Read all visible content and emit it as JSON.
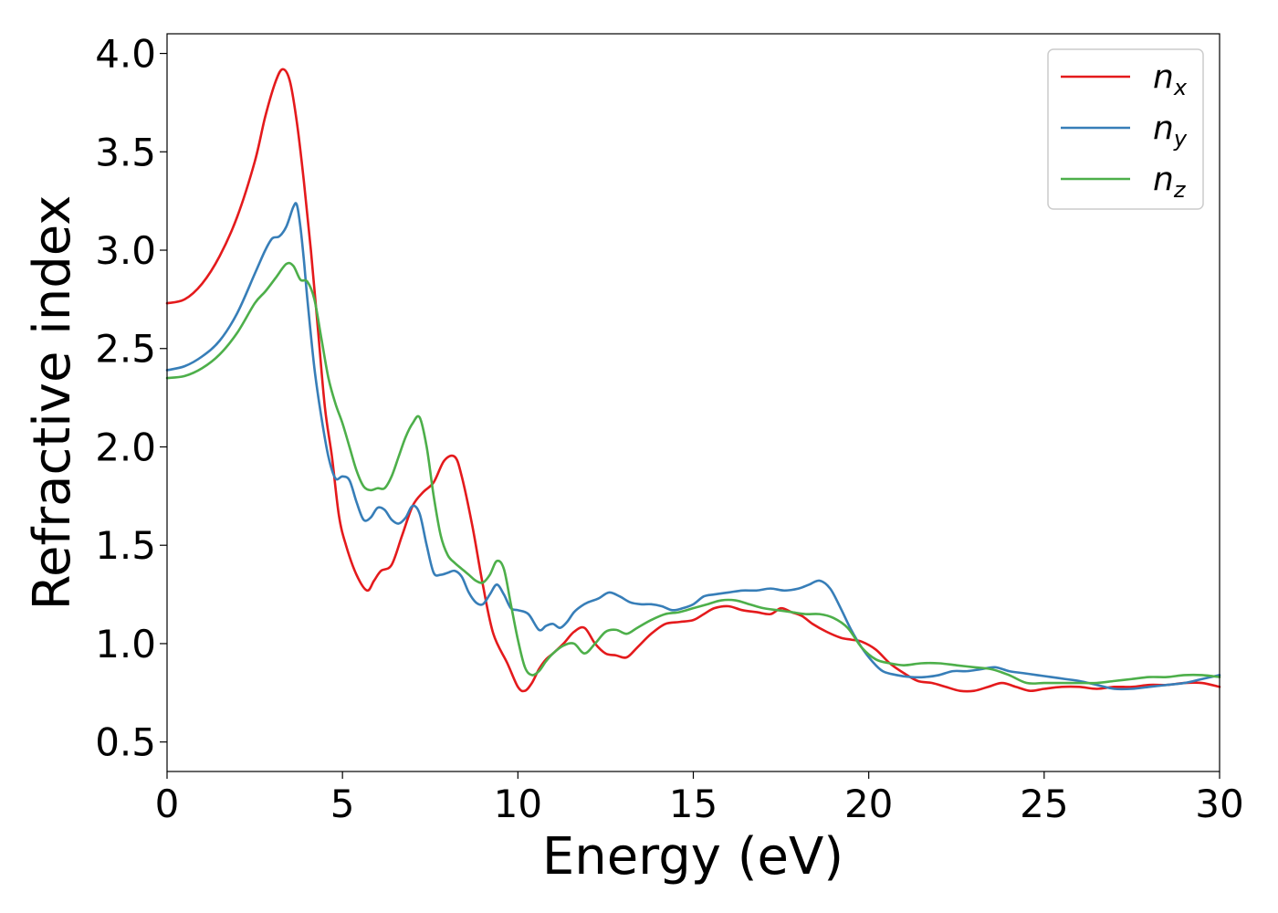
{
  "chart_data": {
    "type": "line",
    "title": "",
    "xlabel": "Energy (eV)",
    "ylabel": "Refractive index",
    "xlim": [
      0,
      30
    ],
    "ylim": [
      0.35,
      4.1
    ],
    "xticks": [
      "0",
      "5",
      "10",
      "15",
      "20",
      "25",
      "30"
    ],
    "yticks": [
      "0.5",
      "1.0",
      "1.5",
      "2.0",
      "2.5",
      "3.0",
      "3.5",
      "4.0"
    ],
    "grid": false,
    "legend_position": "top-right",
    "series": [
      {
        "name": "n",
        "subscript": "x",
        "color": "#e41a1c",
        "x": [
          0,
          0.5,
          1,
          1.5,
          2,
          2.5,
          2.8,
          3.1,
          3.3,
          3.5,
          3.7,
          3.9,
          4.1,
          4.3,
          4.5,
          4.7,
          4.9,
          5.1,
          5.4,
          5.7,
          5.9,
          6.1,
          6.4,
          6.7,
          7.0,
          7.3,
          7.6,
          7.9,
          8.2,
          8.4,
          8.7,
          9.0,
          9.3,
          9.7,
          10.0,
          10.2,
          10.4,
          10.6,
          10.8,
          11.0,
          11.3,
          11.6,
          11.9,
          12.2,
          12.5,
          12.8,
          13.1,
          13.4,
          13.8,
          14.2,
          14.6,
          15.0,
          15.3,
          15.6,
          16.0,
          16.4,
          16.8,
          17.2,
          17.5,
          17.8,
          18.1,
          18.4,
          18.8,
          19.2,
          19.5,
          19.8,
          20.2,
          20.6,
          21.0,
          21.4,
          21.8,
          22.2,
          22.6,
          23.0,
          23.4,
          23.8,
          24.2,
          24.6,
          25.0,
          25.5,
          26.0,
          26.5,
          27.0,
          27.5,
          28.0,
          28.5,
          29.0,
          29.5,
          30.0
        ],
        "y": [
          2.73,
          2.75,
          2.83,
          2.97,
          3.17,
          3.45,
          3.68,
          3.86,
          3.92,
          3.86,
          3.65,
          3.35,
          3.0,
          2.6,
          2.2,
          1.95,
          1.65,
          1.5,
          1.35,
          1.27,
          1.32,
          1.37,
          1.4,
          1.55,
          1.7,
          1.77,
          1.82,
          1.93,
          1.95,
          1.85,
          1.6,
          1.3,
          1.05,
          0.9,
          0.78,
          0.76,
          0.8,
          0.87,
          0.92,
          0.95,
          1.0,
          1.06,
          1.08,
          1.0,
          0.95,
          0.94,
          0.93,
          0.98,
          1.05,
          1.1,
          1.11,
          1.12,
          1.15,
          1.18,
          1.19,
          1.17,
          1.16,
          1.15,
          1.18,
          1.16,
          1.14,
          1.1,
          1.06,
          1.03,
          1.02,
          1.01,
          0.97,
          0.9,
          0.85,
          0.81,
          0.8,
          0.78,
          0.76,
          0.76,
          0.78,
          0.8,
          0.78,
          0.76,
          0.77,
          0.78,
          0.78,
          0.77,
          0.78,
          0.78,
          0.79,
          0.79,
          0.8,
          0.8,
          0.78
        ]
      },
      {
        "name": "n",
        "subscript": "y",
        "color": "#377eb8",
        "x": [
          0,
          0.5,
          1,
          1.5,
          2,
          2.5,
          2.8,
          3.0,
          3.2,
          3.4,
          3.6,
          3.7,
          3.8,
          3.9,
          4.0,
          4.2,
          4.4,
          4.6,
          4.8,
          5.0,
          5.2,
          5.4,
          5.6,
          5.8,
          6.0,
          6.2,
          6.4,
          6.6,
          6.8,
          7.0,
          7.2,
          7.4,
          7.6,
          7.8,
          8.0,
          8.2,
          8.4,
          8.6,
          8.8,
          9.0,
          9.2,
          9.4,
          9.6,
          9.8,
          10.0,
          10.3,
          10.6,
          10.8,
          11.0,
          11.2,
          11.4,
          11.6,
          11.8,
          12.0,
          12.3,
          12.6,
          12.9,
          13.2,
          13.5,
          13.8,
          14.1,
          14.4,
          14.7,
          15.0,
          15.3,
          15.6,
          16.0,
          16.4,
          16.8,
          17.2,
          17.6,
          18.0,
          18.3,
          18.6,
          18.9,
          19.2,
          19.5,
          19.8,
          20.1,
          20.4,
          20.8,
          21.2,
          21.6,
          22.0,
          22.4,
          22.8,
          23.2,
          23.6,
          24.0,
          24.4,
          24.8,
          25.2,
          25.6,
          26.0,
          26.5,
          27.0,
          27.5,
          28.0,
          28.5,
          29.0,
          29.5,
          30.0
        ],
        "y": [
          2.39,
          2.41,
          2.46,
          2.54,
          2.68,
          2.88,
          3.0,
          3.06,
          3.07,
          3.12,
          3.22,
          3.23,
          3.12,
          2.95,
          2.75,
          2.4,
          2.15,
          1.95,
          1.84,
          1.85,
          1.83,
          1.72,
          1.63,
          1.64,
          1.69,
          1.68,
          1.63,
          1.61,
          1.64,
          1.7,
          1.66,
          1.5,
          1.36,
          1.35,
          1.36,
          1.37,
          1.34,
          1.26,
          1.21,
          1.2,
          1.25,
          1.3,
          1.25,
          1.18,
          1.17,
          1.15,
          1.07,
          1.09,
          1.1,
          1.08,
          1.11,
          1.16,
          1.19,
          1.21,
          1.23,
          1.26,
          1.24,
          1.21,
          1.2,
          1.2,
          1.19,
          1.17,
          1.18,
          1.2,
          1.24,
          1.25,
          1.26,
          1.27,
          1.27,
          1.28,
          1.27,
          1.28,
          1.3,
          1.32,
          1.28,
          1.18,
          1.07,
          0.98,
          0.91,
          0.86,
          0.84,
          0.83,
          0.83,
          0.84,
          0.86,
          0.86,
          0.87,
          0.88,
          0.86,
          0.85,
          0.84,
          0.83,
          0.82,
          0.81,
          0.79,
          0.77,
          0.77,
          0.78,
          0.79,
          0.8,
          0.82,
          0.84
        ]
      },
      {
        "name": "n",
        "subscript": "z",
        "color": "#4daf4a",
        "x": [
          0,
          0.5,
          1,
          1.5,
          2,
          2.5,
          2.8,
          3.1,
          3.4,
          3.6,
          3.8,
          4.0,
          4.2,
          4.4,
          4.6,
          4.8,
          5.0,
          5.2,
          5.4,
          5.6,
          5.8,
          6.0,
          6.2,
          6.4,
          6.6,
          6.8,
          7.0,
          7.2,
          7.4,
          7.6,
          7.8,
          8.0,
          8.2,
          8.4,
          8.6,
          8.8,
          9.0,
          9.2,
          9.4,
          9.6,
          9.8,
          10.0,
          10.2,
          10.4,
          10.6,
          10.8,
          11.0,
          11.3,
          11.6,
          11.9,
          12.2,
          12.5,
          12.8,
          13.1,
          13.4,
          13.8,
          14.2,
          14.6,
          15.0,
          15.4,
          15.8,
          16.2,
          16.6,
          17.0,
          17.4,
          17.8,
          18.2,
          18.6,
          19.0,
          19.4,
          19.8,
          20.2,
          20.6,
          21.0,
          21.5,
          22.0,
          22.5,
          23.0,
          23.5,
          24.0,
          24.5,
          25.0,
          25.5,
          26.0,
          26.5,
          27.0,
          27.5,
          28.0,
          28.5,
          29.0,
          29.5,
          30.0
        ],
        "y": [
          2.35,
          2.36,
          2.4,
          2.47,
          2.58,
          2.73,
          2.79,
          2.86,
          2.93,
          2.92,
          2.85,
          2.84,
          2.75,
          2.55,
          2.35,
          2.22,
          2.12,
          2.0,
          1.88,
          1.8,
          1.78,
          1.79,
          1.79,
          1.85,
          1.95,
          2.05,
          2.12,
          2.15,
          2.0,
          1.75,
          1.55,
          1.45,
          1.41,
          1.38,
          1.35,
          1.32,
          1.31,
          1.35,
          1.42,
          1.38,
          1.2,
          1.02,
          0.88,
          0.84,
          0.86,
          0.91,
          0.95,
          0.99,
          1.0,
          0.95,
          1.0,
          1.06,
          1.07,
          1.05,
          1.08,
          1.12,
          1.15,
          1.16,
          1.18,
          1.2,
          1.22,
          1.22,
          1.2,
          1.18,
          1.17,
          1.16,
          1.15,
          1.15,
          1.13,
          1.08,
          0.98,
          0.92,
          0.9,
          0.89,
          0.9,
          0.9,
          0.89,
          0.88,
          0.87,
          0.84,
          0.8,
          0.8,
          0.8,
          0.8,
          0.8,
          0.81,
          0.82,
          0.83,
          0.83,
          0.84,
          0.84,
          0.83
        ]
      }
    ]
  }
}
